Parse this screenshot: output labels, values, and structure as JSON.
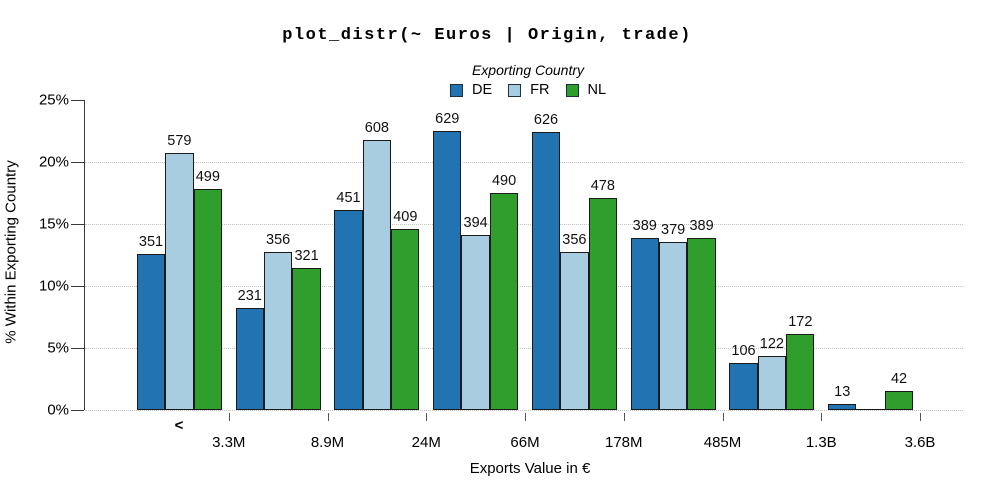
{
  "title": "plot_distr(~ Euros | Origin, trade)",
  "legend": {
    "title": "Exporting Country",
    "items": [
      {
        "label": "DE",
        "color": "#2273b2"
      },
      {
        "label": "FR",
        "color": "#a8cde0"
      },
      {
        "label": "NL",
        "color": "#2f9e2c"
      }
    ]
  },
  "y_axis": {
    "title": "% Within Exporting Country",
    "tick_labels": [
      "0%",
      "5%",
      "10%",
      "15%",
      "20%",
      "25%"
    ],
    "tick_percents": [
      0,
      5,
      10,
      15,
      20,
      25
    ],
    "max_percent": 25
  },
  "x_axis": {
    "title": "Exports Value in €",
    "first_bin_label": "<",
    "tick_labels": [
      "3.3M",
      "8.9M",
      "24M",
      "66M",
      "178M",
      "485M",
      "1.3B",
      "3.6B"
    ]
  },
  "colors": {
    "bar_border": "#1a1a1a",
    "grid_dotted": "#c3c3c3",
    "axis_line": "#3a3a3a",
    "x_tick": "#555555"
  },
  "chart_data": {
    "type": "bar",
    "subtype": "grouped-histogram",
    "title": "plot_distr(~ Euros | Origin, trade)",
    "xlabel": "Exports Value in €",
    "ylabel": "% Within Exporting Country",
    "ylim": [
      0,
      25
    ],
    "y_unit": "percent",
    "grid": "horizontal dotted at 0,5,10,15,20",
    "legend_position": "top-center",
    "bin_boundaries": [
      "3.3M",
      "8.9M",
      "24M",
      "66M",
      "178M",
      "485M",
      "1.3B",
      "3.6B"
    ],
    "bins": [
      "< 3.3M",
      "3.3M–8.9M",
      "8.9M–24M",
      "24M–66M",
      "66M–178M",
      "178M–485M",
      "485M–1.3B",
      "1.3B–3.6B"
    ],
    "series": [
      {
        "name": "DE",
        "color": "#2273b2",
        "counts": [
          351,
          231,
          451,
          629,
          626,
          389,
          106,
          13
        ],
        "percents": [
          12.55,
          8.26,
          16.13,
          22.5,
          22.39,
          13.91,
          3.79,
          0.46
        ]
      },
      {
        "name": "FR",
        "color": "#a8cde0",
        "counts": [
          579,
          356,
          608,
          394,
          356,
          379,
          122,
          0
        ],
        "percents": [
          20.72,
          12.74,
          21.76,
          14.1,
          12.74,
          13.56,
          4.37,
          0
        ]
      },
      {
        "name": "NL",
        "color": "#2f9e2c",
        "counts": [
          499,
          321,
          409,
          490,
          478,
          389,
          172,
          42
        ],
        "percents": [
          17.82,
          11.46,
          14.61,
          17.5,
          17.07,
          13.89,
          6.14,
          1.5
        ]
      }
    ]
  }
}
